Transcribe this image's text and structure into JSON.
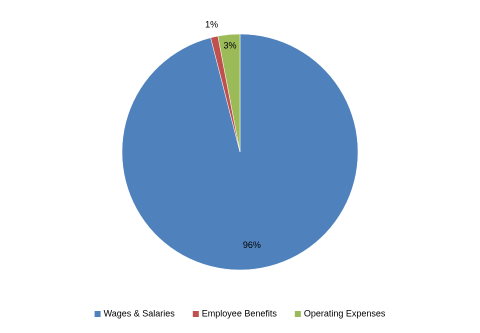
{
  "chart_data": {
    "type": "pie",
    "categories": [
      "Wages & Salaries",
      "Employee Benefits",
      "Operating Expenses"
    ],
    "values": [
      96,
      1,
      3
    ],
    "value_labels": [
      "96%",
      "1%",
      "3%"
    ],
    "colors": [
      "#4f81bd",
      "#c0504d",
      "#9bbb59"
    ],
    "legend": "bottom"
  }
}
